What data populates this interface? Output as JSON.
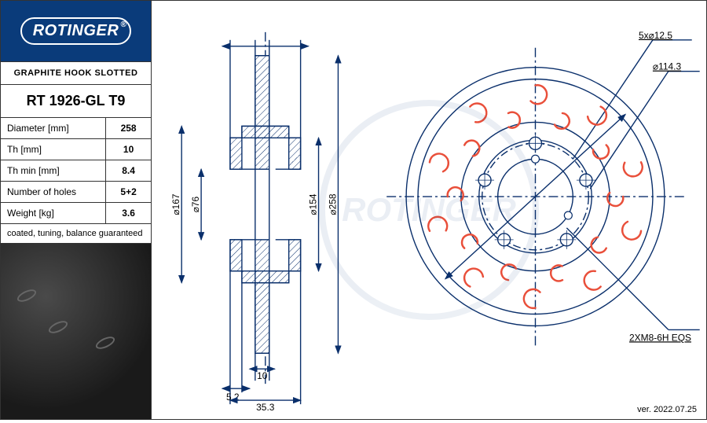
{
  "brand": "ROTINGER",
  "subtitle": "GRAPHITE HOOK SLOTTED",
  "part_number": "RT 1926-GL T9",
  "specs": [
    {
      "label": "Diameter [mm]",
      "value": "258"
    },
    {
      "label": "Th [mm]",
      "value": "10"
    },
    {
      "label": "Th min [mm]",
      "value": "8.4"
    },
    {
      "label": "Number of holes",
      "value": "5+2"
    },
    {
      "label": "Weight [kg]",
      "value": "3.6"
    }
  ],
  "note": "coated, tuning, balance guaranteed",
  "version": "ver. 2022.07.25",
  "side_view": {
    "dims": {
      "d167": "⌀167",
      "d76": "⌀76",
      "d154": "⌀154",
      "d258": "⌀258",
      "w10": "10",
      "w52": "5.2",
      "w353": "35.3"
    },
    "stroke": "#0a2f6b",
    "hatch": "#0a2f6b"
  },
  "front_view": {
    "outer_d": 258,
    "callouts": {
      "bolt": "5x⌀12.5",
      "pcd": "⌀114.3",
      "thread": "2XM8-6H  EQS"
    },
    "stroke": "#0a2f6b",
    "hook_color": "#e94f3a",
    "hook_count_outer": 10,
    "hook_count_inner": 10,
    "bolt_holes": 5,
    "background": "#ffffff"
  },
  "colors": {
    "brand_blue": "#0a3b7a",
    "drawing_blue": "#0a2f6b",
    "hook_red": "#e94f3a",
    "text": "#000000"
  }
}
